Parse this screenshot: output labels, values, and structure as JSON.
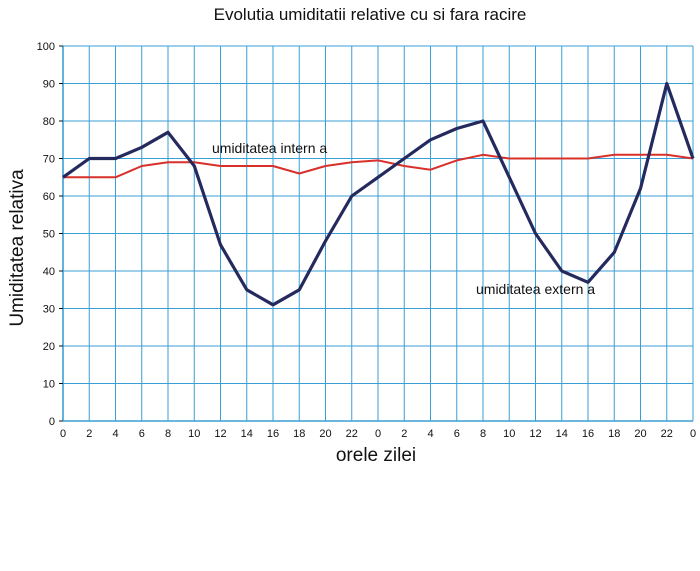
{
  "chart_data": {
    "type": "line",
    "title": "Evolutia umiditatii relative cu si fara racire",
    "xlabel": "orele zilei",
    "ylabel": "Umiditatea relativa",
    "x_ticks": [
      "0",
      "2",
      "4",
      "6",
      "8",
      "10",
      "12",
      "14",
      "16",
      "18",
      "20",
      "22",
      "0",
      "2",
      "4",
      "6",
      "8",
      "10",
      "12",
      "14",
      "16",
      "18",
      "20",
      "22",
      "0"
    ],
    "ylim": [
      0,
      100
    ],
    "y_ticks": [
      "0",
      "10",
      "20",
      "30",
      "40",
      "50",
      "60",
      "70",
      "80",
      "90",
      "100"
    ],
    "grid": true,
    "colors": {
      "grid": "#3a9fd6",
      "internal": "#d8302a",
      "external": "#252a5e"
    },
    "series": [
      {
        "name": "umiditatea intern a",
        "color": "#d8302a",
        "values": [
          65,
          65,
          65,
          68,
          69,
          69,
          68,
          68,
          68,
          66,
          68,
          69,
          69.5,
          68,
          67,
          69.5,
          71,
          70,
          70,
          70,
          70,
          71,
          71,
          71,
          70
        ]
      },
      {
        "name": "umiditatea extern a",
        "color": "#252a5e",
        "values": [
          65,
          70,
          70,
          73,
          77,
          68,
          47,
          35,
          31,
          35,
          48,
          60,
          65,
          70,
          75,
          78,
          80,
          65,
          50,
          40,
          37,
          45,
          62,
          90,
          70
        ]
      }
    ]
  }
}
